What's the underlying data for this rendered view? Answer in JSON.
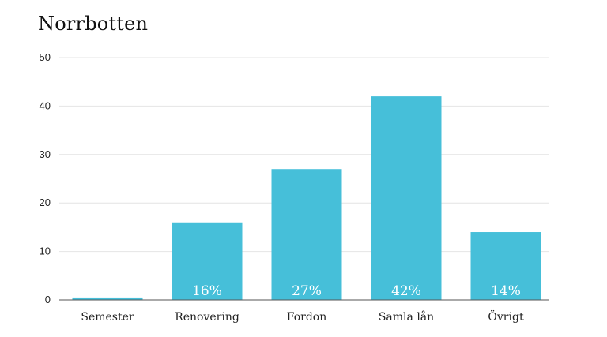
{
  "chart_data": {
    "type": "bar",
    "title": "Norrbotten",
    "xlabel": "",
    "ylabel": "",
    "categories": [
      "Semester",
      "Renovering",
      "Fordon",
      "Samla lån",
      "Övrigt"
    ],
    "values": [
      0.5,
      16,
      27,
      42,
      14
    ],
    "data_labels": [
      "",
      "16%",
      "27%",
      "42%",
      "14%"
    ],
    "yticks": [
      "0",
      "10",
      "20",
      "30",
      "40",
      "50"
    ],
    "ylim": [
      0,
      50
    ],
    "grid": true,
    "bar_color": "#46bfd9",
    "grid_color": "#e4e4e4",
    "axis_color": "#555555"
  }
}
